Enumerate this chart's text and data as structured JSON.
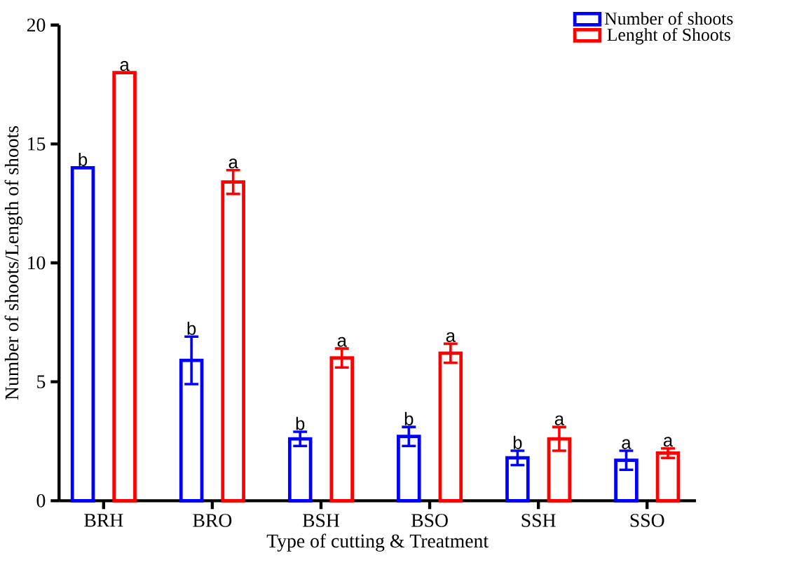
{
  "chart_data": {
    "type": "bar",
    "xlabel": "Type of cutting & Treatment",
    "ylabel": "Number of shoots/Length of shoots",
    "categories": [
      "BRH",
      "BRO",
      "BSH",
      "BSO",
      "SSH",
      "SSO"
    ],
    "ylim": [
      0,
      20
    ],
    "yticks": [
      0,
      5,
      10,
      15,
      20
    ],
    "legend": "top right",
    "series": [
      {
        "name": "Number of shoots",
        "color": "#0000ff",
        "values": [
          14,
          5.9,
          2.6,
          2.7,
          1.8,
          1.7
        ],
        "errors": [
          null,
          1.0,
          0.3,
          0.4,
          0.3,
          0.4
        ],
        "value_labels": [
          "b",
          "b",
          "b",
          "b",
          "b",
          "a"
        ]
      },
      {
        "name": "Lenght of Shoots",
        "color": "#ff0000",
        "values": [
          18,
          13.4,
          6.0,
          6.2,
          2.6,
          2.0
        ],
        "errors": [
          null,
          0.5,
          0.4,
          0.4,
          0.5,
          0.2
        ],
        "value_labels": [
          "a",
          "a",
          "a",
          "a",
          "a",
          "a"
        ]
      }
    ]
  }
}
